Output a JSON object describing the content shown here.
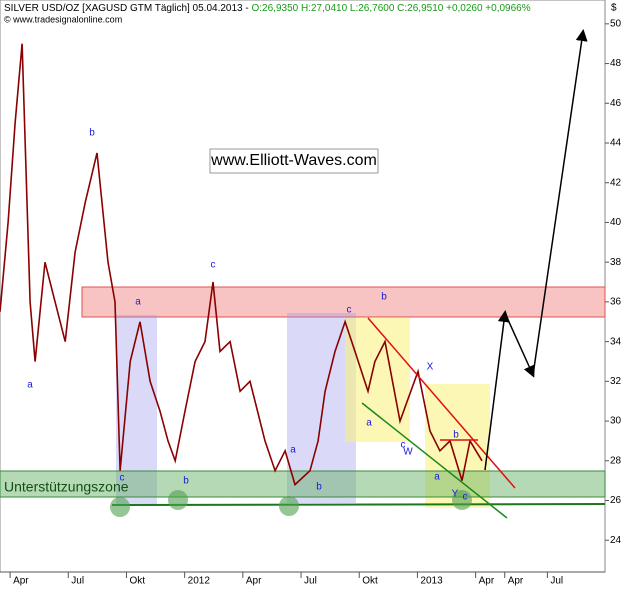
{
  "header": {
    "title": "SILVER USD/OZ [XAGUSD GTM  Täglich] 05.04.2013 - ",
    "ohlc": "O:26,9350 H:27,0410 L:26,7600 C:26,9510 +0,0260 +0,0966%",
    "subtitle": "© www.tradesignalonline.com"
  },
  "watermark": "www.Elliott-Waves.com",
  "zone_label": "Unterstützungszone",
  "annotations": [
    "b",
    "c",
    "a",
    "a",
    "c",
    "b",
    "a",
    "b",
    "c",
    "b",
    "a",
    "c",
    "W",
    "X",
    "a",
    "b",
    "Y",
    "c"
  ],
  "chart_data": {
    "type": "line",
    "y_axis_label": "$",
    "x": [
      -0.52,
      -0.1,
      0.26,
      0.62,
      1.03,
      1.29,
      1.8,
      2.32,
      2.84,
      3.35,
      3.87,
      4.48,
      5.05,
      5.41,
      5.67,
      6.19,
      6.7,
      7.22,
      7.73,
      8.14,
      8.51,
      9.02,
      9.54,
      10.05,
      10.46,
      10.82,
      11.34,
      11.86,
      12.37,
      13.14,
      13.66,
      14.18,
      14.69,
      15.46,
      15.88,
      16.24,
      16.75,
      17.27,
      17.78,
      18.45,
      18.81,
      19.33,
      20.1,
      21.03,
      21.65,
      22.16,
      22.68,
      23.3,
      23.71,
      24.33
    ],
    "series": [
      {
        "name": "SILVER USD/OZ",
        "color": "#8b0000",
        "values": [
          35.5,
          40,
          45,
          49,
          36,
          33,
          38,
          36,
          34,
          38.5,
          41,
          43.5,
          38,
          36,
          27.5,
          33,
          35,
          32,
          30.5,
          29,
          28,
          30.5,
          33,
          34,
          37,
          33.5,
          34,
          31.5,
          32,
          29,
          27.5,
          28.5,
          26.8,
          27.5,
          29,
          31.5,
          33.5,
          35,
          33.5,
          31.5,
          33,
          34,
          30,
          32.5,
          29.5,
          28.5,
          29,
          27,
          29,
          28
        ]
      }
    ],
    "xlim": [
      -0.52,
      30.67
    ],
    "xticks": [
      {
        "value": 0,
        "label": "Apr"
      },
      {
        "value": 3,
        "label": "Jul"
      },
      {
        "value": 6,
        "label": "Okt"
      },
      {
        "value": 9,
        "label": "2012"
      },
      {
        "value": 12,
        "label": "Apr"
      },
      {
        "value": 15,
        "label": "Jul"
      },
      {
        "value": 18,
        "label": "Okt"
      },
      {
        "value": 21,
        "label": "2013"
      },
      {
        "value": 24,
        "label": "Apr"
      },
      {
        "value": 25.5,
        "label": "Apr"
      },
      {
        "value": 27.7,
        "label": "Jul"
      }
    ],
    "ylim": [
      22.4,
      51.2
    ],
    "yticks": [
      24,
      26,
      28,
      30,
      32,
      34,
      36,
      38,
      40,
      42,
      44,
      46,
      48,
      50
    ]
  }
}
